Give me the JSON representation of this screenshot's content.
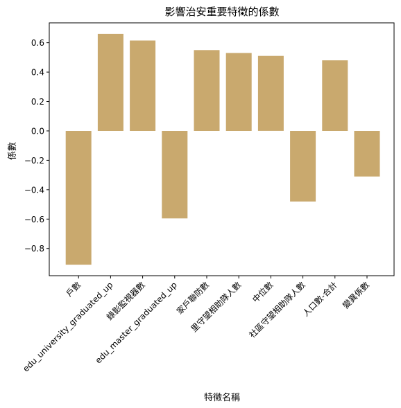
{
  "chart_data": {
    "type": "bar",
    "title": "影響治安重要特徵的係數",
    "xlabel": "特徵名稱",
    "ylabel": "係數",
    "categories": [
      "戶數",
      "edu_university_graduated_up",
      "錄影監視器數",
      "edu_master_graduated_up",
      "家戶聯防數",
      "里守望相助隊人數",
      "中位數",
      "社區守望相助隊人數",
      "人口數-合計",
      "變異係數"
    ],
    "values": [
      -0.91,
      0.66,
      0.615,
      -0.595,
      0.55,
      0.53,
      0.51,
      -0.48,
      0.48,
      -0.31
    ],
    "ylim": [
      -0.985,
      0.735
    ],
    "yticks": [
      -0.8,
      -0.6,
      -0.4,
      -0.2,
      0.0,
      0.2,
      0.4,
      0.6
    ],
    "ytick_labels": [
      "−0.8",
      "−0.6",
      "−0.4",
      "−0.2",
      "0.0",
      "0.2",
      "0.4",
      "0.6"
    ],
    "bar_color": "#c9a96e",
    "grid": false,
    "legend": "none"
  }
}
